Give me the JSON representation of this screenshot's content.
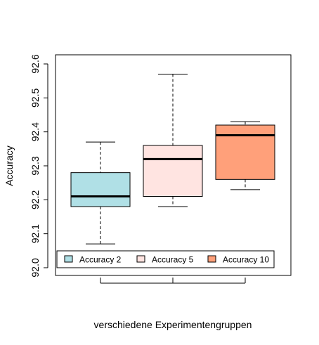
{
  "chart_data": {
    "type": "boxplot",
    "title": "",
    "xlabel": "verschiedene Experimentengruppen",
    "ylabel": "Accuracy",
    "ylim": [
      92.0,
      92.6
    ],
    "yticks": [
      "92.0",
      "92.1",
      "92.2",
      "92.3",
      "92.4",
      "92.5",
      "92.6"
    ],
    "grid": false,
    "legend_position": "bottom",
    "series": [
      {
        "name": "Accuracy 2",
        "color": "#b0e0e6",
        "min": 92.07,
        "q1": 92.18,
        "median": 92.21,
        "q3": 92.28,
        "max": 92.37
      },
      {
        "name": "Accuracy 5",
        "color": "#ffe4e1",
        "min": 92.18,
        "q1": 92.21,
        "median": 92.32,
        "q3": 92.36,
        "max": 92.57
      },
      {
        "name": "Accuracy 10",
        "color": "#ffa07a",
        "min": 92.23,
        "q1": 92.26,
        "median": 92.39,
        "q3": 92.42,
        "max": 92.43
      }
    ]
  }
}
